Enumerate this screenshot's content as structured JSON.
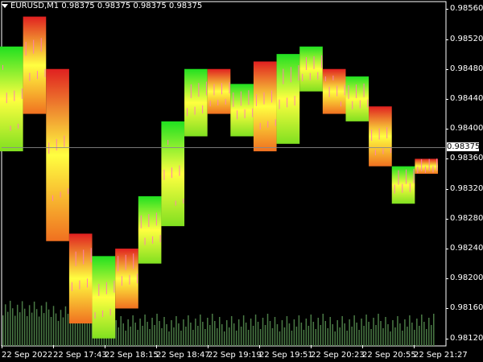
{
  "header": {
    "symbol": "EURUSD,M1",
    "ohlc": "0.98375 0.98375 0.98375 0.98375"
  },
  "current_price": "0.98375",
  "price_labels": [
    "0.98560",
    "0.98520",
    "0.98480",
    "0.98440",
    "0.98400",
    "0.98360",
    "0.98320",
    "0.98280",
    "0.98240",
    "0.98200",
    "0.98160",
    "0.98120"
  ],
  "time_labels": [
    "22 Sep 2022",
    "22 Sep 17:43",
    "22 Sep 18:15",
    "22 Sep 18:47",
    "22 Sep 19:19",
    "22 Sep 19:51",
    "22 Sep 20:23",
    "22 Sep 20:55",
    "22 Sep 21:27"
  ],
  "colors": {
    "background": "#000000",
    "axis": "#ffffff",
    "volume": "#4a7a45",
    "candle": "#ff80b0",
    "red": "#e02020",
    "green": "#20e020",
    "yellow": "#ffff40"
  },
  "chart_data": {
    "type": "heatmap",
    "price_axis": [
      0.9811,
      0.9857
    ],
    "blocks": [
      {
        "high": 0.9851,
        "low": 0.9837,
        "top": "green"
      },
      {
        "high": 0.9855,
        "low": 0.9842,
        "top": "red"
      },
      {
        "high": 0.9848,
        "low": 0.9825,
        "top": "red"
      },
      {
        "high": 0.9826,
        "low": 0.9814,
        "top": "red"
      },
      {
        "high": 0.9823,
        "low": 0.9812,
        "top": "green"
      },
      {
        "high": 0.9824,
        "low": 0.9816,
        "top": "red"
      },
      {
        "high": 0.9831,
        "low": 0.9822,
        "top": "green"
      },
      {
        "high": 0.9841,
        "low": 0.9827,
        "top": "green"
      },
      {
        "high": 0.9848,
        "low": 0.9839,
        "top": "green"
      },
      {
        "high": 0.9848,
        "low": 0.9842,
        "top": "red"
      },
      {
        "high": 0.9846,
        "low": 0.9839,
        "top": "green"
      },
      {
        "high": 0.9849,
        "low": 0.9837,
        "top": "red"
      },
      {
        "high": 0.985,
        "low": 0.9838,
        "top": "green"
      },
      {
        "high": 0.9851,
        "low": 0.9845,
        "top": "green"
      },
      {
        "high": 0.9848,
        "low": 0.9842,
        "top": "red"
      },
      {
        "high": 0.9847,
        "low": 0.9841,
        "top": "green"
      },
      {
        "high": 0.9843,
        "low": 0.9835,
        "top": "red"
      },
      {
        "high": 0.9835,
        "low": 0.983,
        "top": "green"
      },
      {
        "high": 0.9836,
        "low": 0.9834,
        "top": "red"
      }
    ]
  }
}
